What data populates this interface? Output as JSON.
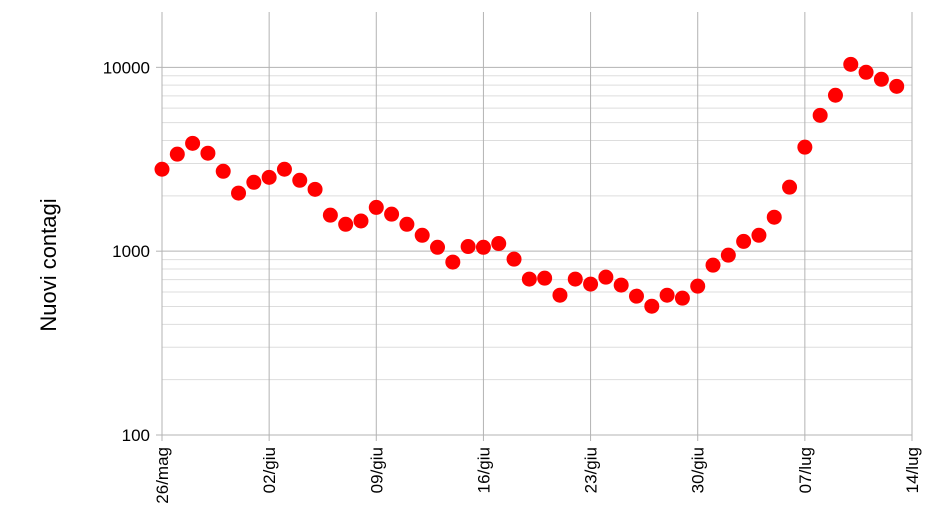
{
  "chart_data": {
    "type": "scatter",
    "y_label": "Nuovi contagi",
    "categories": [
      "26/mag",
      null,
      null,
      null,
      null,
      null,
      null,
      "02/giu",
      null,
      null,
      null,
      null,
      null,
      null,
      "09/giu",
      null,
      null,
      null,
      null,
      null,
      null,
      "16/giu",
      null,
      null,
      null,
      null,
      null,
      null,
      "23/giu",
      null,
      null,
      null,
      null,
      null,
      null,
      "30/giu",
      null,
      null,
      null,
      null,
      null,
      null,
      "07/lug",
      null,
      null,
      null,
      null,
      null,
      null,
      "14/lug"
    ],
    "values": [
      2790,
      3370,
      3860,
      3410,
      2720,
      2070,
      2370,
      2520,
      2790,
      2430,
      2170,
      1570,
      1400,
      1460,
      1730,
      1590,
      1400,
      1220,
      1050,
      872,
      1060,
      1050,
      1100,
      905,
      705,
      713,
      576,
      705,
      662,
      722,
      654,
      569,
      502,
      576,
      555,
      645,
      839,
      951,
      1130,
      1220,
      1530,
      2230,
      3680,
      5480,
      7050,
      10380,
      9400,
      8610,
      7880,
      null
    ],
    "color": "#ff0000",
    "log_scale": true,
    "ylim": [
      100,
      20000
    ],
    "yticks": [
      100,
      1000,
      10000
    ],
    "grid": true
  }
}
